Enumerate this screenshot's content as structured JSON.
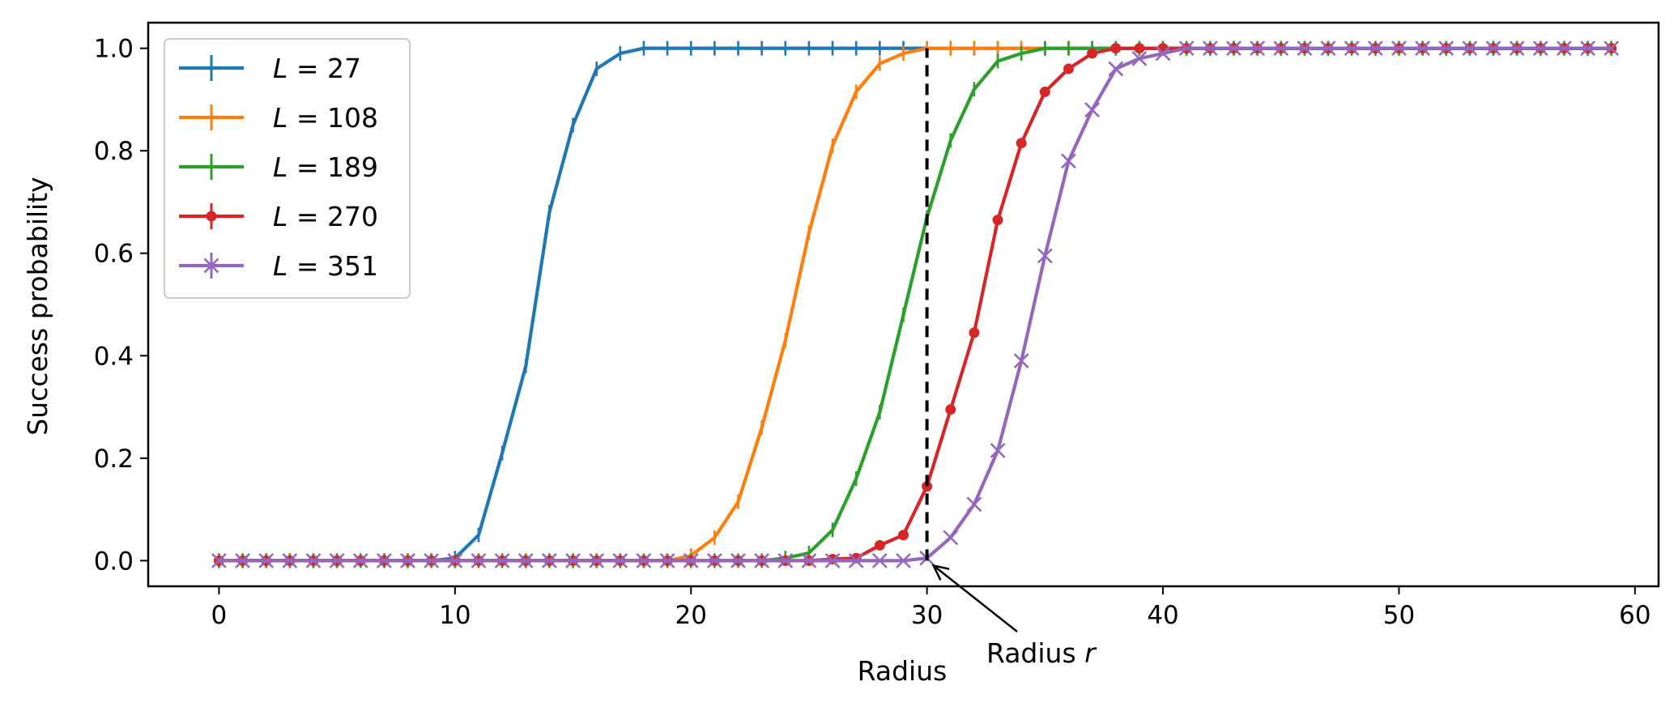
{
  "chart_data": {
    "type": "line",
    "xlabel": "Radius",
    "ylabel": "Success probability",
    "xlim": [
      -3,
      61
    ],
    "ylim": [
      -0.05,
      1.05
    ],
    "xticks": [
      0,
      10,
      20,
      30,
      40,
      50,
      60
    ],
    "yticks": [
      0.0,
      0.2,
      0.4,
      0.6,
      0.8,
      1.0
    ],
    "xtick_labels": [
      "0",
      "10",
      "20",
      "30",
      "40",
      "50",
      "60"
    ],
    "ytick_labels": [
      "0.0",
      "0.2",
      "0.4",
      "0.6",
      "0.8",
      "1.0"
    ],
    "legend_position": "top-left",
    "grid": false,
    "series": [
      {
        "name": "L = 27",
        "color": "#1f77b4",
        "marker": "tick",
        "x": [
          0,
          1,
          2,
          3,
          4,
          5,
          6,
          7,
          8,
          9,
          10,
          11,
          12,
          13,
          14,
          15,
          16,
          17,
          18,
          19,
          20,
          21,
          22,
          23,
          24,
          25,
          26,
          27,
          28,
          29,
          30,
          31,
          32,
          33,
          34,
          35,
          36,
          37,
          38,
          39,
          40,
          41,
          42,
          43,
          44,
          45,
          46,
          47,
          48,
          49,
          50,
          51,
          52,
          53,
          54,
          55,
          56,
          57,
          58,
          59
        ],
        "y": [
          0,
          0,
          0,
          0,
          0,
          0,
          0,
          0,
          0,
          0,
          0.005,
          0.05,
          0.21,
          0.38,
          0.68,
          0.85,
          0.96,
          0.99,
          1,
          1,
          1,
          1,
          1,
          1,
          1,
          1,
          1,
          1,
          1,
          1,
          1,
          1,
          1,
          1,
          1,
          1,
          1,
          1,
          1,
          1,
          1,
          1,
          1,
          1,
          1,
          1,
          1,
          1,
          1,
          1,
          1,
          1,
          1,
          1,
          1,
          1,
          1,
          1,
          1,
          1
        ]
      },
      {
        "name": "L = 108",
        "color": "#ff7f0e",
        "marker": "tick",
        "x": [
          0,
          1,
          2,
          3,
          4,
          5,
          6,
          7,
          8,
          9,
          10,
          11,
          12,
          13,
          14,
          15,
          16,
          17,
          18,
          19,
          20,
          21,
          22,
          23,
          24,
          25,
          26,
          27,
          28,
          29,
          30,
          31,
          32,
          33,
          34,
          35,
          36,
          37,
          38,
          39,
          40,
          41,
          42,
          43,
          44,
          45,
          46,
          47,
          48,
          49,
          50,
          51,
          52,
          53,
          54,
          55,
          56,
          57,
          58,
          59
        ],
        "y": [
          0,
          0,
          0,
          0,
          0,
          0,
          0,
          0,
          0,
          0,
          0,
          0,
          0,
          0,
          0,
          0,
          0,
          0,
          0,
          0,
          0.01,
          0.045,
          0.115,
          0.26,
          0.43,
          0.64,
          0.81,
          0.915,
          0.97,
          0.99,
          1,
          1,
          1,
          1,
          1,
          1,
          1,
          1,
          1,
          1,
          1,
          1,
          1,
          1,
          1,
          1,
          1,
          1,
          1,
          1,
          1,
          1,
          1,
          1,
          1,
          1,
          1,
          1,
          1,
          1
        ]
      },
      {
        "name": "L = 189",
        "color": "#2ca02c",
        "marker": "tick",
        "x": [
          0,
          1,
          2,
          3,
          4,
          5,
          6,
          7,
          8,
          9,
          10,
          11,
          12,
          13,
          14,
          15,
          16,
          17,
          18,
          19,
          20,
          21,
          22,
          23,
          24,
          25,
          26,
          27,
          28,
          29,
          30,
          31,
          32,
          33,
          34,
          35,
          36,
          37,
          38,
          39,
          40,
          41,
          42,
          43,
          44,
          45,
          46,
          47,
          48,
          49,
          50,
          51,
          52,
          53,
          54,
          55,
          56,
          57,
          58,
          59
        ],
        "y": [
          0,
          0,
          0,
          0,
          0,
          0,
          0,
          0,
          0,
          0,
          0,
          0,
          0,
          0,
          0,
          0,
          0,
          0,
          0,
          0,
          0,
          0,
          0,
          0,
          0.005,
          0.015,
          0.06,
          0.16,
          0.29,
          0.48,
          0.67,
          0.82,
          0.92,
          0.975,
          0.99,
          1,
          1,
          1,
          1,
          1,
          1,
          1,
          1,
          1,
          1,
          1,
          1,
          1,
          1,
          1,
          1,
          1,
          1,
          1,
          1,
          1,
          1,
          1,
          1,
          1
        ]
      },
      {
        "name": "L = 270",
        "color": "#d62728",
        "marker": "dot",
        "x": [
          0,
          1,
          2,
          3,
          4,
          5,
          6,
          7,
          8,
          9,
          10,
          11,
          12,
          13,
          14,
          15,
          16,
          17,
          18,
          19,
          20,
          21,
          22,
          23,
          24,
          25,
          26,
          27,
          28,
          29,
          30,
          31,
          32,
          33,
          34,
          35,
          36,
          37,
          38,
          39,
          40,
          41,
          42,
          43,
          44,
          45,
          46,
          47,
          48,
          49,
          50,
          51,
          52,
          53,
          54,
          55,
          56,
          57,
          58,
          59
        ],
        "y": [
          0,
          0,
          0,
          0,
          0,
          0,
          0,
          0,
          0,
          0,
          0,
          0,
          0,
          0,
          0,
          0,
          0,
          0,
          0,
          0,
          0,
          0,
          0,
          0,
          0,
          0,
          0.003,
          0.005,
          0.03,
          0.05,
          0.145,
          0.295,
          0.445,
          0.665,
          0.815,
          0.915,
          0.96,
          0.99,
          1,
          1,
          1,
          1,
          1,
          1,
          1,
          1,
          1,
          1,
          1,
          1,
          1,
          1,
          1,
          1,
          1,
          1,
          1,
          1,
          1,
          1
        ]
      },
      {
        "name": "L = 351",
        "color": "#9467bd",
        "marker": "x",
        "x": [
          0,
          1,
          2,
          3,
          4,
          5,
          6,
          7,
          8,
          9,
          10,
          11,
          12,
          13,
          14,
          15,
          16,
          17,
          18,
          19,
          20,
          21,
          22,
          23,
          24,
          25,
          26,
          27,
          28,
          29,
          30,
          31,
          32,
          33,
          34,
          35,
          36,
          37,
          38,
          39,
          40,
          41,
          42,
          43,
          44,
          45,
          46,
          47,
          48,
          49,
          50,
          51,
          52,
          53,
          54,
          55,
          56,
          57,
          58,
          59
        ],
        "y": [
          0,
          0,
          0,
          0,
          0,
          0,
          0,
          0,
          0,
          0,
          0,
          0,
          0,
          0,
          0,
          0,
          0,
          0,
          0,
          0,
          0,
          0,
          0,
          0,
          0,
          0,
          0,
          0,
          0,
          0,
          0.005,
          0.045,
          0.11,
          0.215,
          0.39,
          0.595,
          0.78,
          0.88,
          0.96,
          0.98,
          0.99,
          1,
          1,
          1,
          1,
          1,
          1,
          1,
          1,
          1,
          1,
          1,
          1,
          1,
          1,
          1,
          1,
          1,
          1,
          1
        ]
      }
    ],
    "vline": {
      "x": 30,
      "y_from": 0,
      "y_to": 1,
      "style": "dashed",
      "color": "#000000"
    },
    "annotation": {
      "text": "Radius r",
      "text_plain": "Radius ",
      "text_italic": "r",
      "points_to": [
        30,
        0
      ]
    }
  }
}
